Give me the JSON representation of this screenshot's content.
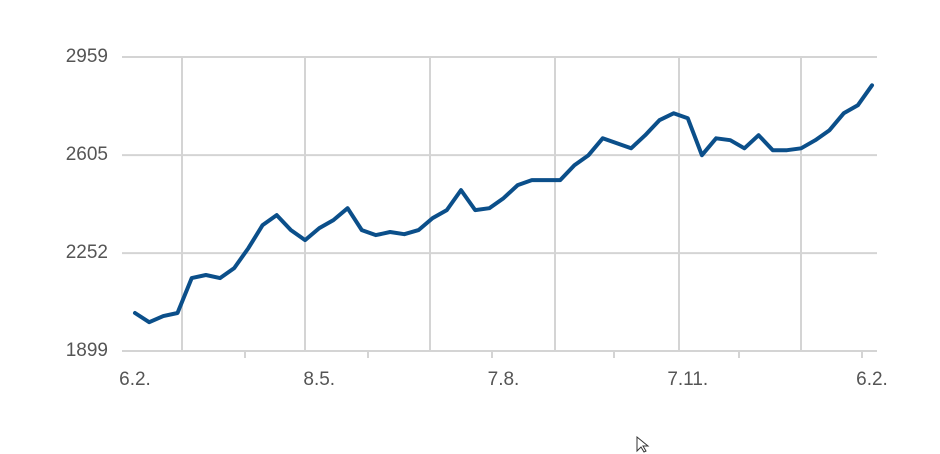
{
  "chart_data": {
    "type": "line",
    "categories": [
      "6.2.",
      null,
      null,
      null,
      null,
      null,
      null,
      null,
      null,
      null,
      null,
      null,
      null,
      "8.5.",
      null,
      null,
      null,
      null,
      null,
      null,
      null,
      null,
      null,
      null,
      null,
      null,
      "7.8.",
      null,
      null,
      null,
      null,
      null,
      null,
      null,
      null,
      null,
      null,
      null,
      null,
      "7.11.",
      null,
      null,
      null,
      null,
      null,
      null,
      null,
      null,
      null,
      null,
      null,
      null,
      "6.2."
    ],
    "values": [
      2036,
      2003,
      2025,
      2036,
      2162,
      2173,
      2162,
      2198,
      2270,
      2353,
      2389,
      2335,
      2299,
      2342,
      2371,
      2414,
      2335,
      2317,
      2328,
      2320,
      2335,
      2378,
      2407,
      2479,
      2407,
      2414,
      2450,
      2497,
      2515,
      2515,
      2515,
      2569,
      2605,
      2666,
      2648,
      2630,
      2677,
      2731,
      2756,
      2738,
      2605,
      2666,
      2659,
      2630,
      2677,
      2623,
      2623,
      2630,
      2659,
      2695,
      2756,
      2785,
      2857
    ],
    "color": "#0b4f8a",
    "ylim": [
      1899,
      2959
    ],
    "yticks": [
      1899,
      2252,
      2605,
      2959
    ],
    "grid": true
  }
}
